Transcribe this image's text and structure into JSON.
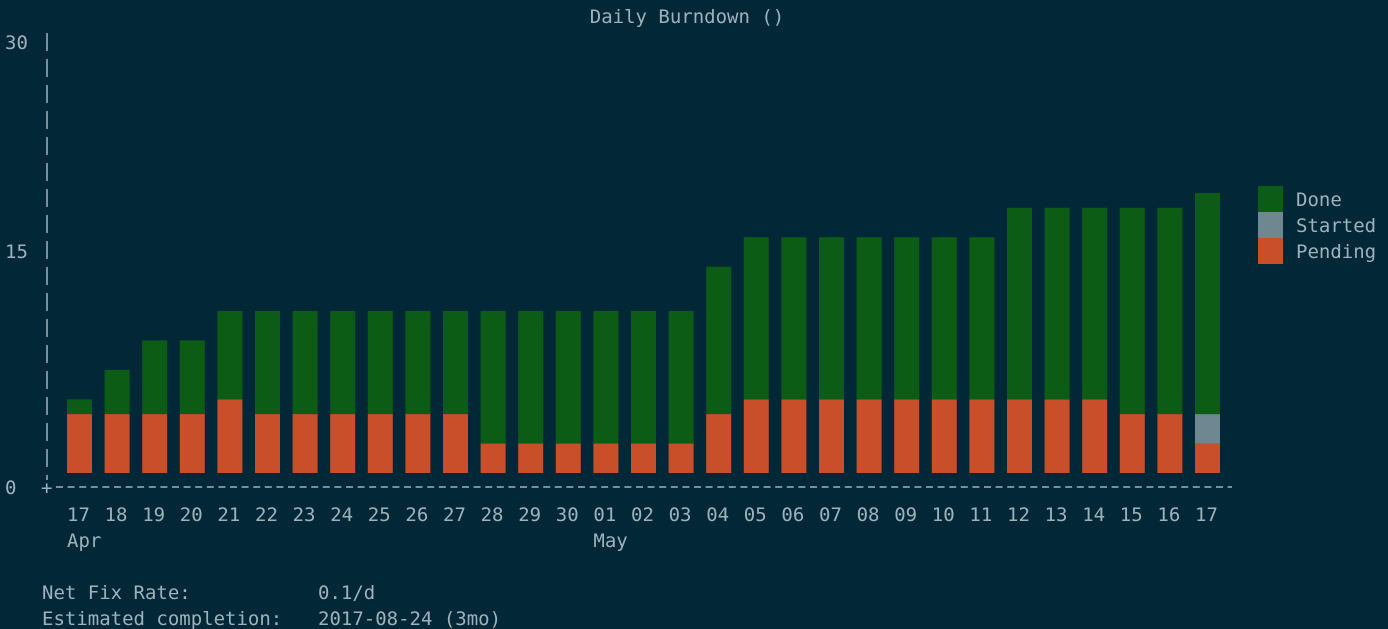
{
  "chart_data": {
    "type": "bar",
    "stacked": true,
    "title": "Daily Burndown ()",
    "xlabel": "",
    "ylabel": "",
    "ylim": [
      0,
      30
    ],
    "yticks": [
      "0",
      "15",
      "30"
    ],
    "categories": [
      "17",
      "18",
      "19",
      "20",
      "21",
      "22",
      "23",
      "24",
      "25",
      "26",
      "27",
      "28",
      "29",
      "30",
      "01",
      "02",
      "03",
      "04",
      "05",
      "06",
      "07",
      "08",
      "09",
      "10",
      "11",
      "12",
      "13",
      "14",
      "15",
      "16",
      "17"
    ],
    "month_labels": [
      {
        "label": "Apr",
        "at_index": 0
      },
      {
        "label": "May",
        "at_index": 14
      }
    ],
    "series": [
      {
        "name": "Pending",
        "color": "#c84f2a",
        "values": [
          4,
          4,
          4,
          4,
          5,
          4,
          4,
          4,
          4,
          4,
          4,
          2,
          2,
          2,
          2,
          2,
          2,
          4,
          5,
          5,
          5,
          5,
          5,
          5,
          5,
          5,
          5,
          5,
          4,
          4,
          2
        ]
      },
      {
        "name": "Started",
        "color": "#6f8791",
        "values": [
          0,
          0,
          0,
          0,
          0,
          0,
          0,
          0,
          0,
          0,
          0,
          0,
          0,
          0,
          0,
          0,
          0,
          0,
          0,
          0,
          0,
          0,
          0,
          0,
          0,
          0,
          0,
          0,
          0,
          0,
          2
        ]
      },
      {
        "name": "Done",
        "color": "#0d5c15",
        "values": [
          1,
          3,
          5,
          5,
          6,
          7,
          7,
          7,
          7,
          7,
          7,
          9,
          9,
          9,
          9,
          9,
          9,
          10,
          11,
          11,
          11,
          11,
          11,
          11,
          11,
          13,
          13,
          13,
          14,
          14,
          15
        ]
      }
    ],
    "legend": {
      "position": "right",
      "entries": [
        "Done",
        "Started",
        "Pending"
      ]
    },
    "grid": false
  },
  "stats": {
    "net_fix_rate_label": "Net Fix Rate:",
    "net_fix_rate_value": "0.1/d",
    "estimated_completion_label": "Estimated completion:",
    "estimated_completion_value": "2017-08-24 (3mo)"
  }
}
